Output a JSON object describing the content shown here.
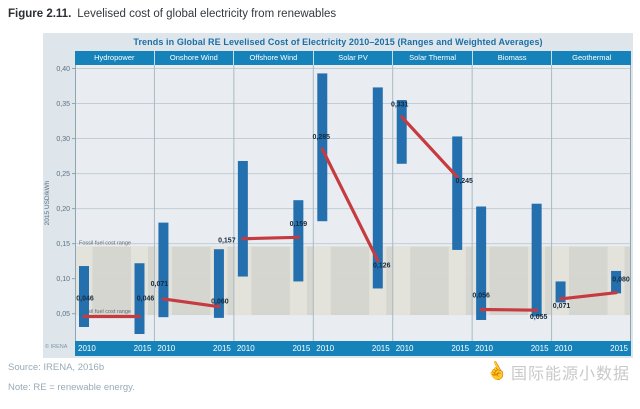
{
  "figure": {
    "label": "Figure 2.11.",
    "caption": "Levelised cost of global electricity from renewables"
  },
  "footer": {
    "source": "Source: IRENA, 2016b",
    "note": "Note: RE = renewable energy.",
    "watermark_icon": "pointing-hand",
    "watermark": "国际能源小数据"
  },
  "chart_data": {
    "type": "range-bar-with-weighted-average-line",
    "title": "Trends in Global RE Levelised Cost of Electricity 2010–2015 (Ranges and Weighted Averages)",
    "ylabel": "2015 USD/kWh",
    "ylim": [
      0.011,
      0.405
    ],
    "grid": true,
    "copyright": "© IRENA",
    "years": [
      "2010",
      "2015"
    ],
    "yticks": [
      {
        "v": 0.05,
        "label": "0,05"
      },
      {
        "v": 0.1,
        "label": "0,10"
      },
      {
        "v": 0.15,
        "label": "0,15"
      },
      {
        "v": 0.2,
        "label": "0,20"
      },
      {
        "v": 0.25,
        "label": "0,25"
      },
      {
        "v": 0.3,
        "label": "0,30"
      },
      {
        "v": 0.35,
        "label": "0,35"
      },
      {
        "v": 0.4,
        "label": "0,40"
      }
    ],
    "fossil_band": {
      "label": "Fossil fuel cost range",
      "from": 0.048,
      "to": 0.146
    },
    "categories": [
      "Hydropower",
      "Onshore Wind",
      "Offshore Wind",
      "Solar PV",
      "Solar Thermal",
      "Biomass",
      "Geothermal"
    ],
    "series": [
      {
        "category": "Hydropower",
        "range_2010": [
          0.031,
          0.118
        ],
        "range_2015": [
          0.021,
          0.122
        ],
        "avg_2010": 0.046,
        "avg_2015": 0.046,
        "label_2010": "0,046",
        "label_2015": "0,046",
        "off_2010": [
          1,
          -18
        ],
        "off_2015": [
          6,
          -18
        ]
      },
      {
        "category": "Onshore Wind",
        "range_2010": [
          0.045,
          0.18
        ],
        "range_2015": [
          0.044,
          0.142
        ],
        "avg_2010": 0.071,
        "avg_2015": 0.06,
        "label_2010": "0,071",
        "label_2015": "0,060",
        "off_2010": [
          -4,
          -15
        ],
        "off_2015": [
          1,
          -5
        ]
      },
      {
        "category": "Offshore Wind",
        "range_2010": [
          0.103,
          0.268
        ],
        "range_2015": [
          0.096,
          0.212
        ],
        "avg_2010": 0.157,
        "avg_2015": 0.159,
        "label_2010": "0,157",
        "label_2015": "0,159",
        "off_2010": [
          -16,
          2
        ],
        "off_2015": [
          0,
          -13
        ]
      },
      {
        "category": "Solar PV",
        "range_2010": [
          0.182,
          0.393
        ],
        "range_2015": [
          0.086,
          0.373
        ],
        "avg_2010": 0.285,
        "avg_2015": 0.126,
        "label_2010": "0,285",
        "label_2015": "0,126",
        "off_2010": [
          -1,
          -12
        ],
        "off_2015": [
          4,
          5
        ]
      },
      {
        "category": "Solar Thermal",
        "range_2010": [
          0.264,
          0.355
        ],
        "range_2015": [
          0.141,
          0.303
        ],
        "avg_2010": 0.331,
        "avg_2015": 0.245,
        "label_2010": "0,331",
        "label_2015": "0,245",
        "off_2010": [
          -2,
          -12
        ],
        "off_2015": [
          7,
          4
        ]
      },
      {
        "category": "Biomass",
        "range_2010": [
          0.041,
          0.203
        ],
        "range_2015": [
          0.046,
          0.207
        ],
        "avg_2010": 0.056,
        "avg_2015": 0.055,
        "label_2010": "0,056",
        "label_2015": "0,055",
        "off_2010": [
          0,
          -14
        ],
        "off_2015": [
          2,
          7
        ]
      },
      {
        "category": "Geothermal",
        "range_2010": [
          0.066,
          0.096
        ],
        "range_2015": [
          0.079,
          0.111
        ],
        "avg_2010": 0.071,
        "avg_2015": 0.08,
        "label_2010": "0,071",
        "label_2015": "0,080",
        "off_2010": [
          1,
          7
        ],
        "off_2015": [
          5,
          -13
        ]
      }
    ],
    "colors": {
      "bar": "#2470ae",
      "avg_line": "#c63b40",
      "band": "#d4d4cd",
      "band_stripe": "#e4e4dd",
      "header_bg": "#1583ba",
      "plot_bg": "#e9edf2",
      "grid": "#c3cdd5",
      "axis_text": "#5a7282",
      "label_text": "#14293e",
      "title_text": "#1b6fa5"
    }
  }
}
